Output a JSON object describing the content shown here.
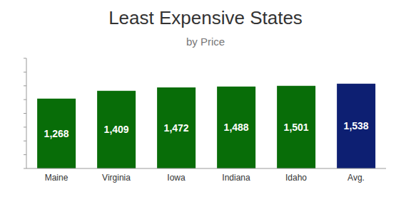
{
  "chart_data": {
    "type": "bar",
    "title": "Least Expensive States",
    "subtitle": "by Price",
    "categories": [
      "Maine",
      "Virginia",
      "Iowa",
      "Indiana",
      "Idaho",
      "Avg."
    ],
    "values": [
      1268,
      1409,
      1472,
      1488,
      1501,
      1538
    ],
    "value_labels": [
      "1,268",
      "1,409",
      "1,472",
      "1,488",
      "1,501",
      "1,538"
    ],
    "colors": [
      "#086d08",
      "#086d08",
      "#086d08",
      "#086d08",
      "#086d08",
      "#0d1f72"
    ],
    "ylim": [
      0,
      2000
    ],
    "yticks": [
      0,
      250,
      500,
      750,
      1000,
      1250,
      1500,
      1750,
      2000
    ],
    "grid": false,
    "data_labels": true,
    "tick_labels": "x"
  }
}
